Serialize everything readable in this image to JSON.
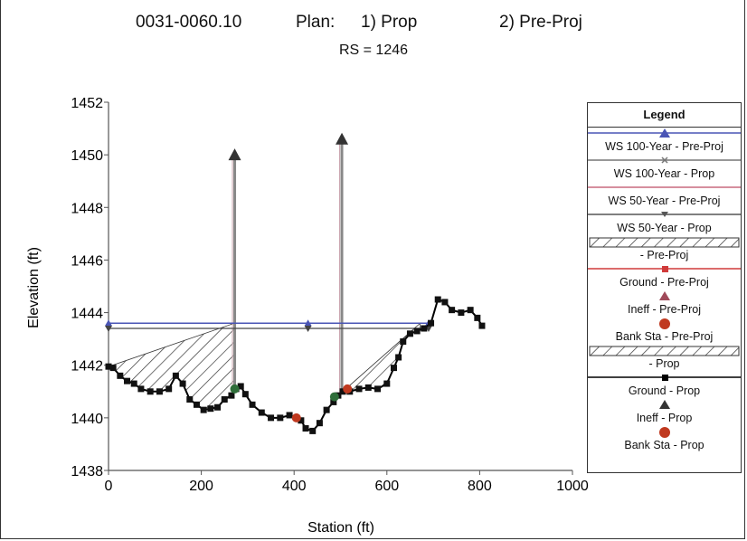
{
  "header": {
    "id": "0031-0060.10",
    "plan_label": "Plan:",
    "plan_1": "1) Prop",
    "plan_2": "2) Pre-Proj",
    "rs": "RS = 1246"
  },
  "legend_title": "Legend",
  "chart_data": {
    "type": "line",
    "xlabel": "Station (ft)",
    "ylabel": "Elevation (ft)",
    "xlim": [
      0,
      1000
    ],
    "ylim": [
      1438,
      1452
    ],
    "xticks": [
      0,
      200,
      400,
      600,
      800,
      1000
    ],
    "yticks": [
      1438,
      1440,
      1442,
      1444,
      1446,
      1448,
      1450,
      1452
    ],
    "grid": false,
    "legend_position": "right",
    "series": [
      {
        "name": "WS 100-Year - Pre-Proj",
        "color": "#4a55b5",
        "marker": "triangle-up",
        "kind": "water-surface",
        "elevation": 1443.6,
        "x_range": [
          0,
          700
        ]
      },
      {
        "name": "WS 100-Year - Prop",
        "color": "#777777",
        "marker": "x",
        "kind": "water-surface",
        "elevation": 1443.6,
        "x_range": [
          0,
          700
        ]
      },
      {
        "name": "WS 50-Year - Pre-Proj",
        "color": "#c86a7e",
        "marker": "none",
        "kind": "water-surface",
        "elevation": 1443.4,
        "x_range": [
          0,
          690
        ]
      },
      {
        "name": "WS 50-Year - Prop",
        "color": "#555555",
        "marker": "triangle-down",
        "kind": "water-surface",
        "elevation": 1443.4,
        "x_range": [
          0,
          690
        ]
      },
      {
        "name": "- Pre-Proj",
        "color": "#999999",
        "marker": "none",
        "kind": "hatch"
      },
      {
        "name": "Ground - Pre-Proj",
        "color": "#d03a3a",
        "marker": "square",
        "kind": "ground"
      },
      {
        "name": "Ineff - Pre-Proj",
        "color": "#a04a5a",
        "marker": "triangle-up",
        "kind": "ineffective"
      },
      {
        "name": "Bank Sta - Pre-Proj",
        "color": "#c0391f",
        "marker": "circle",
        "kind": "bank"
      },
      {
        "name": "- Prop",
        "color": "#555555",
        "marker": "none",
        "kind": "hatch"
      },
      {
        "name": "Ground - Prop",
        "color": "#000000",
        "marker": "square",
        "kind": "ground"
      },
      {
        "name": "Ineff - Prop",
        "color": "#333333",
        "marker": "triangle-up",
        "kind": "ineffective"
      },
      {
        "name": "Bank Sta - Prop",
        "color": "#c0391f",
        "marker": "circle",
        "kind": "bank"
      }
    ],
    "ground": [
      [
        0,
        1441.95
      ],
      [
        10,
        1441.9
      ],
      [
        25,
        1441.6
      ],
      [
        40,
        1441.4
      ],
      [
        55,
        1441.3
      ],
      [
        70,
        1441.1
      ],
      [
        90,
        1441.0
      ],
      [
        110,
        1441.0
      ],
      [
        130,
        1441.1
      ],
      [
        145,
        1441.6
      ],
      [
        160,
        1441.3
      ],
      [
        175,
        1440.7
      ],
      [
        190,
        1440.5
      ],
      [
        205,
        1440.3
      ],
      [
        220,
        1440.35
      ],
      [
        235,
        1440.4
      ],
      [
        250,
        1440.7
      ],
      [
        265,
        1440.85
      ],
      [
        275,
        1441.1
      ],
      [
        285,
        1441.2
      ],
      [
        295,
        1440.9
      ],
      [
        310,
        1440.5
      ],
      [
        330,
        1440.2
      ],
      [
        350,
        1440.0
      ],
      [
        370,
        1440.0
      ],
      [
        390,
        1440.1
      ],
      [
        405,
        1440.0
      ],
      [
        415,
        1439.9
      ],
      [
        425,
        1439.6
      ],
      [
        440,
        1439.5
      ],
      [
        455,
        1439.8
      ],
      [
        470,
        1440.3
      ],
      [
        485,
        1440.6
      ],
      [
        495,
        1440.85
      ],
      [
        505,
        1441.0
      ],
      [
        520,
        1441.0
      ],
      [
        540,
        1441.1
      ],
      [
        560,
        1441.15
      ],
      [
        580,
        1441.1
      ],
      [
        600,
        1441.3
      ],
      [
        615,
        1441.9
      ],
      [
        625,
        1442.3
      ],
      [
        635,
        1442.9
      ],
      [
        650,
        1443.2
      ],
      [
        665,
        1443.3
      ],
      [
        680,
        1443.4
      ],
      [
        695,
        1443.6
      ],
      [
        710,
        1444.5
      ],
      [
        725,
        1444.4
      ],
      [
        740,
        1444.1
      ],
      [
        760,
        1444.0
      ],
      [
        780,
        1444.1
      ],
      [
        795,
        1443.8
      ],
      [
        805,
        1443.5
      ]
    ],
    "water_surface_100yr": {
      "elevation": 1443.6,
      "x_range": [
        0,
        700
      ]
    },
    "water_surface_50yr": {
      "elevation": 1443.4,
      "x_range": [
        0,
        690
      ]
    },
    "ineffective": [
      {
        "station": 272,
        "elevation": 1450.0
      },
      {
        "station": 503,
        "elevation": 1450.6
      }
    ],
    "bank_stations": [
      {
        "station": 272,
        "elevation": 1441.1
      },
      {
        "station": 405,
        "elevation": 1440.0
      },
      {
        "station": 487,
        "elevation": 1440.8
      },
      {
        "station": 515,
        "elevation": 1441.1
      }
    ]
  }
}
